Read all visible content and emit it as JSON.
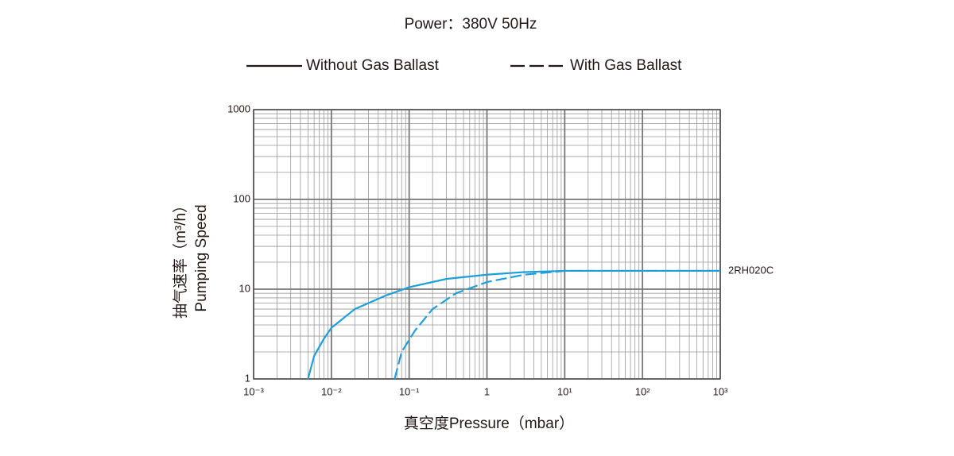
{
  "chart_data": {
    "type": "line",
    "title": "Power：380V 50Hz",
    "x_label": "真空度Pressure（mbar）",
    "y_label": [
      "抽气速率（m³/h）",
      "Pumping Speed"
    ],
    "annotation": "2RH020C",
    "xscale": "log",
    "yscale": "log",
    "grid": true,
    "xlim": [
      0.001,
      1000
    ],
    "ylim": [
      1,
      1000
    ],
    "xticks": [
      {
        "value": 0.001,
        "label": "10⁻³"
      },
      {
        "value": 0.01,
        "label": "10⁻²"
      },
      {
        "value": 0.1,
        "label": "10⁻¹"
      },
      1,
      {
        "value": 10,
        "label": "10¹"
      },
      {
        "value": 100,
        "label": "10²"
      },
      {
        "value": 1000,
        "label": "10³"
      }
    ],
    "yticks": [
      1,
      10,
      100,
      1000
    ],
    "series": [
      {
        "name": "Without Gas Ballast",
        "color": "#1e9fdc",
        "style": "solid",
        "x": [
          0.005,
          0.006,
          0.008,
          0.01,
          0.02,
          0.05,
          0.1,
          0.3,
          1,
          3,
          10,
          1000
        ],
        "values": [
          1,
          1.8,
          2.8,
          3.7,
          6,
          8.5,
          10.5,
          13,
          14.5,
          15.5,
          16,
          16
        ]
      },
      {
        "name": "With Gas Ballast",
        "color": "#1e9fdc",
        "style": "dashed",
        "x": [
          0.065,
          0.08,
          0.12,
          0.2,
          0.4,
          1,
          3,
          10,
          1000
        ],
        "values": [
          1,
          2,
          3.5,
          6,
          9,
          12,
          14.5,
          16,
          16
        ]
      }
    ]
  }
}
